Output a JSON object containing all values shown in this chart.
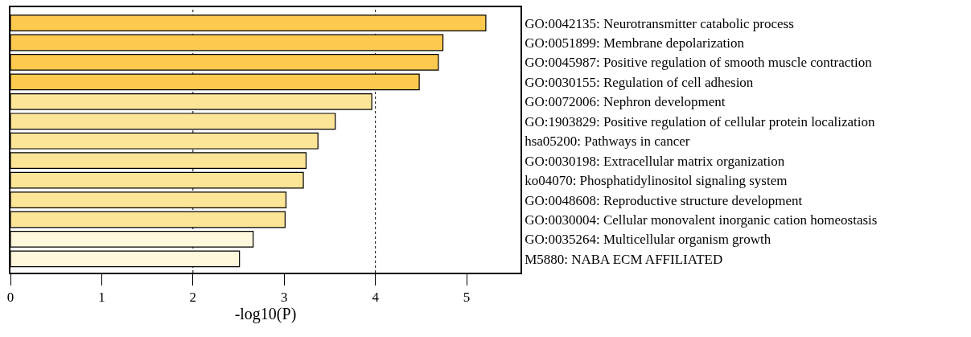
{
  "chart_data": {
    "type": "bar",
    "orientation": "horizontal",
    "xlabel": "-log10(P)",
    "categories": [
      "GO:0042135: Neurotransmitter catabolic process",
      "GO:0051899: Membrane depolarization",
      "GO:0045987: Positive regulation of smooth muscle contraction",
      "GO:0030155: Regulation of cell adhesion",
      "GO:0072006: Nephron development",
      "GO:1903829: Positive regulation of cellular protein localization",
      "hsa05200: Pathways in cancer",
      "GO:0030198: Extracellular matrix organization",
      "ko04070: Phosphatidylinositol signaling system",
      "GO:0048608: Reproductive structure development",
      "GO:0030004: Cellular monovalent inorganic cation homeostasis",
      "GO:0035264: Multicellular organism growth",
      "M5880: NABA ECM AFFILIATED"
    ],
    "values": [
      5.21,
      4.74,
      4.69,
      4.48,
      3.96,
      3.56,
      3.37,
      3.24,
      3.21,
      3.02,
      3.01,
      2.66,
      2.51
    ],
    "colors": [
      "#fdc94f",
      "#fdc94f",
      "#fdc94f",
      "#fdc94f",
      "#fde598",
      "#fde598",
      "#fde598",
      "#fde598",
      "#fde598",
      "#fde598",
      "#fde598",
      "#fff8dc",
      "#fff8dc"
    ],
    "xlim": [
      0,
      5.59
    ],
    "xticks": [
      0,
      1,
      2,
      3,
      4,
      5
    ],
    "ref_lines": [
      {
        "axis": "x",
        "value": 2,
        "line_style": "dotted",
        "color": "#000000"
      },
      {
        "axis": "x",
        "value": 4,
        "line_style": "dotted",
        "color": "#000000"
      }
    ]
  }
}
